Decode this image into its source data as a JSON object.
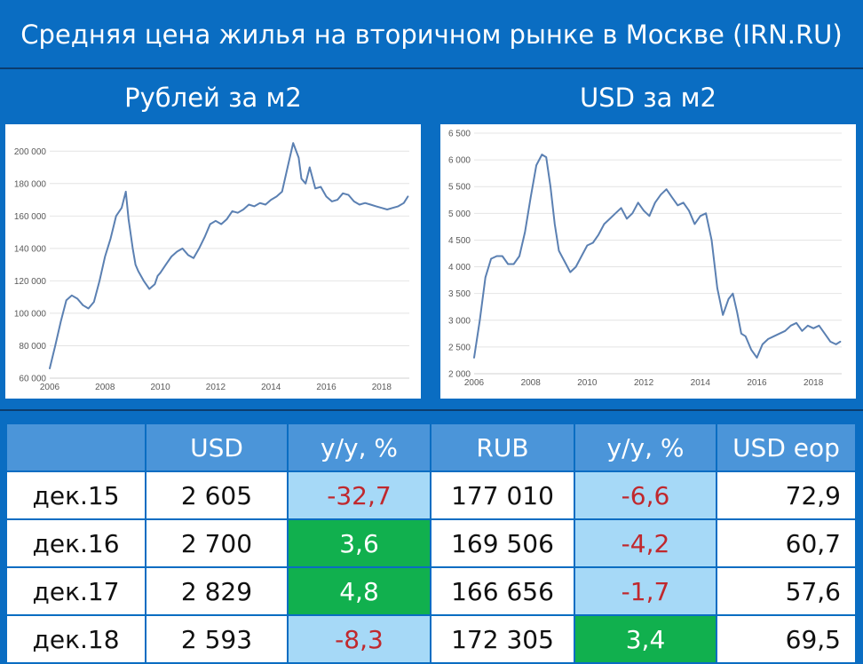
{
  "header": {
    "title": "Средняя цена жилья на вторичном рынке в Москве (IRN.RU)",
    "left_subtitle": "Рублей за м2",
    "right_subtitle": "USD за м2"
  },
  "colors": {
    "background": "#0a6dc2",
    "line": "#5b80b2",
    "header_cell": "#4b95d9",
    "light_blue": "#a6d9f7",
    "green": "#11b04e",
    "negative_text": "#c0282d"
  },
  "chart_data": [
    {
      "type": "line",
      "title": "Рублей за м2",
      "xlabel": "",
      "ylabel": "",
      "xlim": [
        2006,
        2019
      ],
      "ylim": [
        60000,
        210000
      ],
      "yticks": [
        60000,
        80000,
        100000,
        120000,
        140000,
        160000,
        180000,
        200000
      ],
      "ytick_labels": [
        "60 000",
        "80 000",
        "100 000",
        "120 000",
        "140 000",
        "160 000",
        "180 000",
        "200 000"
      ],
      "xticks": [
        2006,
        2008,
        2010,
        2012,
        2014,
        2016,
        2018
      ],
      "xtick_labels": [
        "2006",
        "2008",
        "2010",
        "2012",
        "2014",
        "2016",
        "2018"
      ],
      "grid": true,
      "series": [
        {
          "x": [
            2006.0,
            2006.2,
            2006.4,
            2006.6,
            2006.8,
            2007.0,
            2007.2,
            2007.4,
            2007.6,
            2007.8,
            2008.0,
            2008.2,
            2008.4,
            2008.6,
            2008.75,
            2008.85,
            2009.0,
            2009.1,
            2009.2,
            2009.4,
            2009.6,
            2009.8,
            2009.9,
            2010.0,
            2010.2,
            2010.4,
            2010.6,
            2010.8,
            2011.0,
            2011.2,
            2011.4,
            2011.6,
            2011.8,
            2012.0,
            2012.2,
            2012.4,
            2012.6,
            2012.8,
            2013.0,
            2013.2,
            2013.4,
            2013.6,
            2013.8,
            2014.0,
            2014.2,
            2014.4,
            2014.6,
            2014.8,
            2015.0,
            2015.1,
            2015.25,
            2015.4,
            2015.6,
            2015.8,
            2016.0,
            2016.2,
            2016.4,
            2016.6,
            2016.8,
            2017.0,
            2017.2,
            2017.4,
            2017.6,
            2017.8,
            2018.0,
            2018.2,
            2018.4,
            2018.6,
            2018.8,
            2018.95
          ],
          "values": [
            66000,
            80000,
            95000,
            108000,
            111000,
            109000,
            105000,
            103000,
            107000,
            120000,
            135000,
            146000,
            160000,
            165000,
            175000,
            158000,
            140000,
            130000,
            126000,
            120000,
            115000,
            118000,
            123000,
            125000,
            130000,
            135000,
            138000,
            140000,
            136000,
            134000,
            140000,
            147000,
            155000,
            157000,
            155000,
            158000,
            163000,
            162000,
            164000,
            167000,
            166000,
            168000,
            167000,
            170000,
            172000,
            175000,
            190000,
            205000,
            196000,
            183000,
            180000,
            190000,
            177000,
            178000,
            172000,
            169000,
            170000,
            174000,
            173000,
            169000,
            167000,
            168000,
            167000,
            166000,
            165000,
            164000,
            165000,
            166000,
            168000,
            172000
          ]
        }
      ]
    },
    {
      "type": "line",
      "title": "USD за м2",
      "xlabel": "",
      "ylabel": "",
      "xlim": [
        2006,
        2019
      ],
      "ylim": [
        2000,
        6500
      ],
      "yticks": [
        2000,
        2500,
        3000,
        3500,
        4000,
        4500,
        5000,
        5500,
        6000,
        6500
      ],
      "ytick_labels": [
        "2 000",
        "2 500",
        "3 000",
        "3 500",
        "4 000",
        "4 500",
        "5 000",
        "5 500",
        "6 000",
        "6 500"
      ],
      "xticks": [
        2006,
        2008,
        2010,
        2012,
        2014,
        2016,
        2018
      ],
      "xtick_labels": [
        "2006",
        "2008",
        "2010",
        "2012",
        "2014",
        "2016",
        "2018"
      ],
      "grid": true,
      "series": [
        {
          "x": [
            2006.0,
            2006.2,
            2006.4,
            2006.6,
            2006.8,
            2007.0,
            2007.2,
            2007.4,
            2007.6,
            2007.8,
            2008.0,
            2008.2,
            2008.4,
            2008.55,
            2008.7,
            2008.85,
            2009.0,
            2009.2,
            2009.4,
            2009.6,
            2009.8,
            2010.0,
            2010.2,
            2010.4,
            2010.6,
            2010.8,
            2011.0,
            2011.2,
            2011.4,
            2011.6,
            2011.8,
            2012.0,
            2012.2,
            2012.4,
            2012.6,
            2012.8,
            2013.0,
            2013.2,
            2013.4,
            2013.6,
            2013.8,
            2014.0,
            2014.2,
            2014.4,
            2014.6,
            2014.8,
            2015.0,
            2015.15,
            2015.3,
            2015.45,
            2015.6,
            2015.8,
            2016.0,
            2016.2,
            2016.4,
            2016.6,
            2016.8,
            2017.0,
            2017.2,
            2017.4,
            2017.6,
            2017.8,
            2018.0,
            2018.2,
            2018.4,
            2018.6,
            2018.8,
            2018.95
          ],
          "values": [
            2300,
            3000,
            3800,
            4150,
            4200,
            4200,
            4050,
            4050,
            4200,
            4650,
            5300,
            5900,
            6100,
            6050,
            5500,
            4800,
            4300,
            4100,
            3900,
            4000,
            4200,
            4400,
            4450,
            4600,
            4800,
            4900,
            5000,
            5100,
            4900,
            5000,
            5200,
            5050,
            4950,
            5200,
            5350,
            5450,
            5300,
            5150,
            5200,
            5050,
            4800,
            4950,
            5000,
            4500,
            3600,
            3100,
            3400,
            3500,
            3150,
            2750,
            2700,
            2450,
            2300,
            2550,
            2650,
            2700,
            2750,
            2800,
            2900,
            2950,
            2800,
            2900,
            2850,
            2900,
            2750,
            2600,
            2550,
            2600
          ]
        }
      ]
    }
  ],
  "table": {
    "headers": [
      "",
      "USD",
      "y/y, %",
      "RUB",
      "y/y, %",
      "USD eop"
    ],
    "rows": [
      {
        "label": "дек.15",
        "usd": "2 605",
        "usd_yy": "-32,7",
        "rub": "177 010",
        "rub_yy": "-6,6",
        "usd_eop": "72,9"
      },
      {
        "label": "дек.16",
        "usd": "2 700",
        "usd_yy": "3,6",
        "rub": "169 506",
        "rub_yy": "-4,2",
        "usd_eop": "60,7"
      },
      {
        "label": "дек.17",
        "usd": "2 829",
        "usd_yy": "4,8",
        "rub": "166 656",
        "rub_yy": "-1,7",
        "usd_eop": "57,6"
      },
      {
        "label": "дек.18",
        "usd": "2 593",
        "usd_yy": "-8,3",
        "rub": "172 305",
        "rub_yy": "3,4",
        "usd_eop": "69,5"
      }
    ]
  }
}
